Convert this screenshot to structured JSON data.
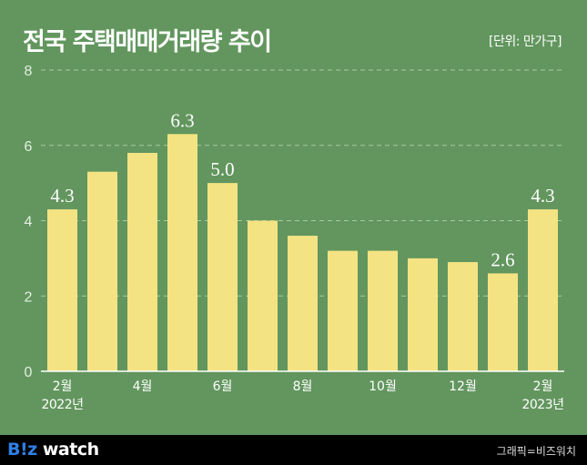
{
  "title": "전국 주택매매거래량 추이",
  "unit": "[단위: 만가구]",
  "footer": {
    "logo_brand": "B!z",
    "logo_word": "watch",
    "credit": "그래픽=비즈워치"
  },
  "colors": {
    "background": "#62965e",
    "bar": "#f4e383",
    "grid": "#a9c9a3",
    "footer": "#000000"
  },
  "chart_data": {
    "type": "bar",
    "title": "전국 주택매매거래량 추이",
    "ylabel": "[단위: 만가구]",
    "ylim": [
      0,
      8
    ],
    "yticks": [
      0,
      2,
      4,
      6,
      8
    ],
    "grid": true,
    "categories": [
      "2022-02",
      "2022-03",
      "2022-04",
      "2022-05",
      "2022-06",
      "2022-07",
      "2022-08",
      "2022-09",
      "2022-10",
      "2022-11",
      "2022-12",
      "2023-01",
      "2023-02"
    ],
    "tick_labels": [
      "2월",
      "",
      "4월",
      "",
      "6월",
      "",
      "8월",
      "",
      "10월",
      "",
      "12월",
      "",
      "2월"
    ],
    "year_labels": [
      "2022년",
      "",
      "",
      "",
      "",
      "",
      "",
      "",
      "",
      "",
      "",
      "",
      "2023년"
    ],
    "values": [
      4.3,
      5.3,
      5.8,
      6.3,
      5.0,
      4.0,
      3.6,
      3.2,
      3.2,
      3.0,
      2.9,
      2.6,
      4.3
    ],
    "data_labels": [
      "4.3",
      "",
      "",
      "6.3",
      "5.0",
      "",
      "",
      "",
      "",
      "",
      "",
      "2.6",
      "4.3"
    ]
  }
}
